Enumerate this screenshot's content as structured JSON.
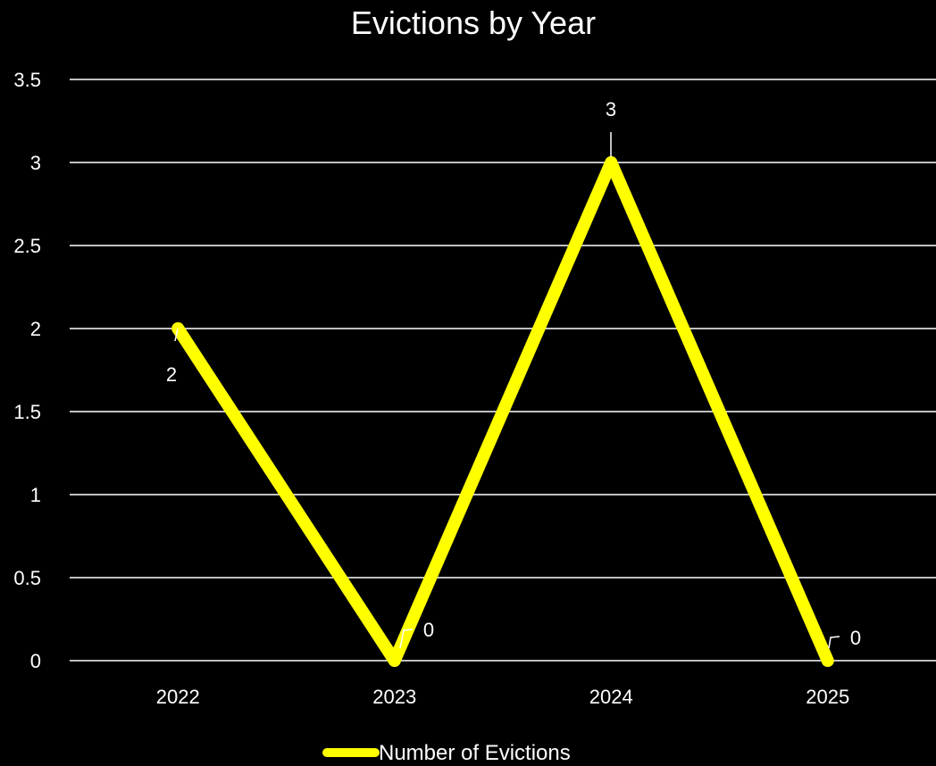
{
  "chart_data": {
    "type": "line",
    "title": "Evictions by Year",
    "categories": [
      "2022",
      "2023",
      "2024",
      "2025"
    ],
    "series": [
      {
        "name": "Number of Evictions",
        "values": [
          2,
          0,
          3,
          0
        ],
        "color": "#FFFF00"
      }
    ],
    "data_labels": [
      "2",
      "0",
      "3",
      "0"
    ],
    "yticks": [
      "0",
      "0.5",
      "1",
      "1.5",
      "2",
      "2.5",
      "3",
      "3.5"
    ],
    "ylim": [
      0,
      3.5
    ],
    "grid": true,
    "legend_position": "bottom",
    "background_color": "#000000",
    "text_color": "#FFFFFF",
    "grid_color": "#FFFFFF"
  }
}
